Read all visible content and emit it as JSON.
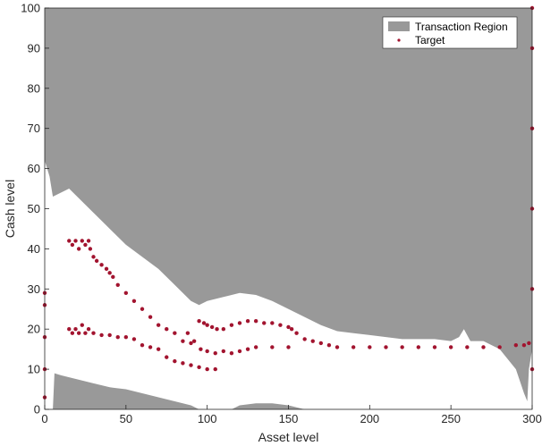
{
  "chart_data": {
    "type": "area",
    "xlabel": "Asset level",
    "ylabel": "Cash level",
    "xlim": [
      0,
      300
    ],
    "ylim": [
      0,
      100
    ],
    "xticks": [
      0,
      50,
      100,
      150,
      200,
      250,
      300
    ],
    "yticks": [
      0,
      10,
      20,
      30,
      40,
      50,
      60,
      70,
      80,
      90,
      100
    ],
    "legend_position": "top-right",
    "legend": [
      {
        "label": "Transaction Region",
        "color": "#999999",
        "marker": "patch"
      },
      {
        "label": "Target",
        "color": "#a2142f",
        "marker": "dot"
      }
    ],
    "series": [
      {
        "name": "Transaction Region",
        "kind": "upper-region",
        "color": "#999999",
        "boundary": [
          [
            0,
            62
          ],
          [
            3,
            58
          ],
          [
            5,
            53
          ],
          [
            10,
            54
          ],
          [
            15,
            55
          ],
          [
            20,
            53
          ],
          [
            30,
            49
          ],
          [
            40,
            45
          ],
          [
            50,
            41
          ],
          [
            60,
            38
          ],
          [
            70,
            35
          ],
          [
            80,
            31
          ],
          [
            90,
            27
          ],
          [
            95,
            26
          ],
          [
            100,
            27
          ],
          [
            110,
            28
          ],
          [
            120,
            29
          ],
          [
            130,
            28.5
          ],
          [
            140,
            27
          ],
          [
            150,
            25
          ],
          [
            160,
            23
          ],
          [
            170,
            21
          ],
          [
            180,
            19.5
          ],
          [
            190,
            19
          ],
          [
            200,
            18.5
          ],
          [
            210,
            18
          ],
          [
            220,
            17.5
          ],
          [
            230,
            17.5
          ],
          [
            240,
            17.5
          ],
          [
            250,
            17
          ],
          [
            255,
            18
          ],
          [
            258,
            20
          ],
          [
            262,
            17
          ],
          [
            270,
            17
          ],
          [
            280,
            15
          ],
          [
            290,
            10
          ],
          [
            295,
            4
          ],
          [
            297,
            2
          ],
          [
            298,
            10
          ],
          [
            300,
            15
          ]
        ]
      },
      {
        "name": "Transaction Region",
        "kind": "lower-region",
        "color": "#999999",
        "boundary": [
          [
            0,
            0
          ],
          [
            5,
            0
          ],
          [
            6,
            9
          ],
          [
            10,
            8.5
          ],
          [
            20,
            7.5
          ],
          [
            30,
            6.5
          ],
          [
            40,
            5.5
          ],
          [
            50,
            5
          ],
          [
            60,
            4
          ],
          [
            70,
            3
          ],
          [
            80,
            2
          ],
          [
            90,
            1
          ],
          [
            95,
            0
          ]
        ]
      },
      {
        "name": "Transaction Region",
        "kind": "lower-region",
        "color": "#999999",
        "boundary": [
          [
            115,
            0
          ],
          [
            120,
            1
          ],
          [
            130,
            1.5
          ],
          [
            140,
            1.5
          ],
          [
            150,
            1
          ],
          [
            160,
            0
          ]
        ]
      },
      {
        "name": "Target",
        "kind": "markers",
        "color": "#a2142f",
        "points": [
          [
            15,
            42
          ],
          [
            17,
            41
          ],
          [
            19,
            42
          ],
          [
            21,
            40
          ],
          [
            23,
            42
          ],
          [
            25,
            41
          ],
          [
            27,
            42
          ],
          [
            28,
            40
          ],
          [
            30,
            38
          ],
          [
            32,
            37
          ],
          [
            35,
            36
          ],
          [
            38,
            35
          ],
          [
            40,
            34
          ],
          [
            42,
            33
          ],
          [
            45,
            31
          ],
          [
            50,
            29
          ],
          [
            55,
            27
          ],
          [
            60,
            25
          ],
          [
            65,
            23
          ],
          [
            70,
            21
          ],
          [
            75,
            20
          ],
          [
            80,
            19
          ],
          [
            85,
            17
          ],
          [
            90,
            16.5
          ],
          [
            95,
            22
          ],
          [
            98,
            21.5
          ],
          [
            100,
            21
          ],
          [
            103,
            20.5
          ],
          [
            106,
            20
          ],
          [
            110,
            20
          ],
          [
            115,
            21
          ],
          [
            120,
            21.5
          ],
          [
            125,
            22
          ],
          [
            130,
            22
          ],
          [
            135,
            21.5
          ],
          [
            140,
            21.5
          ],
          [
            145,
            21
          ],
          [
            150,
            20.5
          ],
          [
            152,
            20
          ],
          [
            15,
            20
          ],
          [
            17,
            19
          ],
          [
            19,
            20
          ],
          [
            21,
            19
          ],
          [
            23,
            21
          ],
          [
            25,
            19
          ],
          [
            27,
            20
          ],
          [
            30,
            19
          ],
          [
            35,
            18.5
          ],
          [
            40,
            18.5
          ],
          [
            45,
            18
          ],
          [
            50,
            18
          ],
          [
            55,
            17.5
          ],
          [
            60,
            16
          ],
          [
            65,
            15.5
          ],
          [
            70,
            15
          ],
          [
            88,
            19
          ],
          [
            92,
            17
          ],
          [
            96,
            15
          ],
          [
            100,
            14.5
          ],
          [
            105,
            14
          ],
          [
            110,
            14.5
          ],
          [
            115,
            14
          ],
          [
            120,
            14.5
          ],
          [
            125,
            15
          ],
          [
            130,
            15.5
          ],
          [
            140,
            15.5
          ],
          [
            150,
            15.5
          ],
          [
            155,
            19
          ],
          [
            160,
            17.5
          ],
          [
            165,
            17
          ],
          [
            170,
            16.5
          ],
          [
            175,
            16
          ],
          [
            180,
            15.5
          ],
          [
            190,
            15.5
          ],
          [
            200,
            15.5
          ],
          [
            210,
            15.5
          ],
          [
            220,
            15.5
          ],
          [
            230,
            15.5
          ],
          [
            240,
            15.5
          ],
          [
            250,
            15.5
          ],
          [
            260,
            15.5
          ],
          [
            270,
            15.5
          ],
          [
            280,
            15.5
          ],
          [
            290,
            16
          ],
          [
            295,
            16
          ],
          [
            298,
            16.5
          ],
          [
            75,
            13
          ],
          [
            80,
            12
          ],
          [
            85,
            11.5
          ],
          [
            90,
            11
          ],
          [
            95,
            10.5
          ],
          [
            100,
            10
          ],
          [
            105,
            10
          ],
          [
            300,
            10
          ],
          [
            300,
            30
          ],
          [
            300,
            50
          ],
          [
            300,
            70
          ],
          [
            300,
            90
          ],
          [
            300,
            100
          ],
          [
            0,
            3
          ],
          [
            0,
            10
          ],
          [
            0,
            18
          ],
          [
            0,
            26
          ],
          [
            0,
            29
          ]
        ]
      }
    ]
  }
}
